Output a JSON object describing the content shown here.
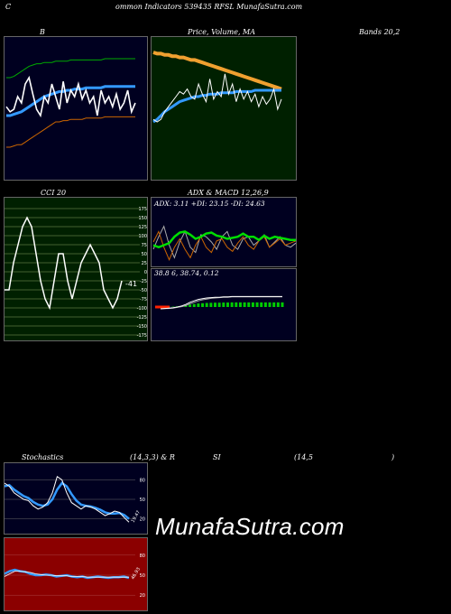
{
  "header": {
    "title_c": "C",
    "title_rest": "ommon  Indicators 539435 RFSL  MunafaSutra.com"
  },
  "labels": {
    "bb": "B",
    "price_ma": "Price,  Volume,  MA",
    "bands": "Bands 20,2",
    "cci": "CCI 20",
    "adx_macd": "ADX  &  MACD 12,26,9",
    "stoch": "Stochastics",
    "stoch_params": "(14,3,3) & R",
    "rsi": "SI",
    "rsi_params": "(14,5",
    "rsi_close": ")"
  },
  "watermark": "MunafaSutra.com",
  "colors": {
    "bb_bg": "#000020",
    "price_bg": "#002000",
    "cci_bg": "#002000",
    "macd_bg": "#000020",
    "stoch_bg": "#000020",
    "rsi_bg": "#8b0000"
  },
  "chart_data": [
    {
      "type": "line",
      "title": "Bollinger Bands 20,2",
      "series": [
        {
          "values": [
            52,
            48,
            50,
            60,
            55,
            70,
            75,
            62,
            50,
            45,
            60,
            55,
            70,
            60,
            50,
            72,
            55,
            65,
            60,
            70,
            58,
            65,
            55,
            60,
            45,
            65,
            55,
            60,
            52,
            62,
            50,
            55,
            65,
            48,
            55
          ]
        },
        {
          "values": [
            45,
            45,
            46,
            47,
            48,
            50,
            52,
            54,
            56,
            58,
            60,
            61,
            62,
            63,
            64,
            64,
            65,
            65,
            66,
            66,
            66,
            67,
            67,
            67,
            67,
            67,
            68,
            68,
            68,
            68,
            68,
            68,
            68,
            68,
            68
          ]
        },
        {
          "values": [
            75,
            75,
            76,
            78,
            80,
            82,
            84,
            85,
            86,
            86,
            87,
            87,
            87,
            88,
            88,
            88,
            88,
            89,
            89,
            89,
            89,
            89,
            89,
            89,
            89,
            89,
            90,
            90,
            90,
            90,
            90,
            90,
            90,
            90,
            90
          ]
        },
        {
          "values": [
            20,
            20,
            21,
            22,
            22,
            24,
            26,
            28,
            30,
            32,
            34,
            36,
            38,
            40,
            40,
            41,
            41,
            42,
            42,
            42,
            42,
            43,
            43,
            43,
            43,
            43,
            44,
            44,
            44,
            44,
            44,
            44,
            44,
            44,
            44
          ]
        }
      ]
    },
    {
      "type": "line",
      "title": "Price, Volume, MA",
      "series": [
        {
          "values": [
            42,
            40,
            42,
            48,
            52,
            56,
            60,
            64,
            62,
            66,
            60,
            58,
            70,
            62,
            56,
            74,
            58,
            64,
            60,
            78,
            62,
            70,
            56,
            66,
            58,
            64,
            56,
            62,
            52,
            60,
            54,
            58,
            66,
            50,
            58
          ]
        },
        {
          "values": [
            40,
            42,
            45,
            48,
            50,
            52,
            54,
            56,
            57,
            58,
            59,
            60,
            60,
            61,
            61,
            62,
            62,
            62,
            63,
            63,
            63,
            63,
            64,
            64,
            64,
            64,
            64,
            65,
            65,
            65,
            65,
            65,
            65,
            65,
            65
          ]
        },
        {
          "values": [
            95,
            94,
            94,
            93,
            93,
            92,
            92,
            91,
            91,
            90,
            89,
            89,
            88,
            87,
            86,
            85,
            84,
            83,
            82,
            81,
            80,
            79,
            78,
            77,
            76,
            75,
            74,
            73,
            72,
            71,
            70,
            69,
            68,
            67,
            66
          ]
        }
      ]
    },
    {
      "type": "line",
      "title": "CCI 20",
      "ylim": [
        -175,
        175
      ],
      "yticks": [
        175,
        150,
        125,
        100,
        75,
        50,
        25,
        0,
        -25,
        -50,
        -75,
        -100,
        -125,
        -150,
        -175
      ],
      "values": [
        -50,
        -50,
        25,
        75,
        125,
        150,
        125,
        50,
        -25,
        -75,
        -100,
        -25,
        50,
        50,
        -25,
        -75,
        -25,
        25,
        50,
        75,
        50,
        25,
        -50,
        -75,
        -100,
        -75,
        -25
      ],
      "annotation": "-41"
    },
    {
      "type": "line",
      "title": "ADX & MACD 12,26,9",
      "annotation": "ADX: 3.11  +DI: 23.15  -DI: 24.63",
      "macd_annotation": "38.8                   6,  38.74,  0.12",
      "series": [
        {
          "values": [
            22,
            20,
            22,
            24,
            30,
            34,
            35,
            32,
            28,
            30,
            33,
            34,
            31,
            30,
            28,
            29,
            30,
            33,
            30,
            30,
            27,
            31,
            28,
            30,
            29,
            28,
            27,
            27
          ]
        },
        {
          "values": [
            18,
            30,
            40,
            22,
            10,
            25,
            35,
            20,
            15,
            32,
            30,
            25,
            18,
            30,
            35,
            22,
            18,
            28,
            30,
            22,
            26,
            32,
            20,
            25,
            30,
            22,
            20,
            24
          ]
        },
        {
          "values": [
            25,
            35,
            20,
            8,
            20,
            28,
            18,
            10,
            22,
            30,
            20,
            15,
            26,
            28,
            20,
            16,
            24,
            30,
            22,
            18,
            26,
            30,
            20,
            24,
            28,
            22,
            24,
            26
          ]
        }
      ],
      "macd": [
        {
          "values": [
            0,
            1,
            2,
            3,
            5,
            8,
            12,
            18,
            22,
            26,
            28,
            30,
            31,
            32,
            32,
            33,
            33,
            34,
            34,
            34,
            34,
            34,
            34,
            34,
            34,
            34,
            34,
            34,
            34,
            34
          ]
        },
        {
          "values": [
            0,
            0.5,
            1,
            2,
            4,
            6,
            9,
            14,
            18,
            22,
            25,
            27,
            29,
            30,
            31,
            32,
            32,
            33,
            33,
            33,
            33,
            33,
            33,
            33,
            33,
            33,
            33,
            33,
            33,
            33
          ]
        }
      ]
    },
    {
      "type": "line",
      "title": "Stochastics (14,3,3)",
      "ylim": [
        0,
        100
      ],
      "yticks": [
        80,
        50,
        20
      ],
      "series": [
        {
          "values": [
            75,
            70,
            60,
            55,
            50,
            48,
            40,
            35,
            38,
            45,
            60,
            85,
            80,
            60,
            45,
            40,
            35,
            40,
            38,
            35,
            30,
            25,
            28,
            32,
            30,
            22,
            15
          ]
        },
        {
          "values": [
            70,
            72,
            65,
            60,
            55,
            52,
            46,
            42,
            40,
            42,
            50,
            65,
            75,
            70,
            58,
            48,
            42,
            40,
            39,
            37,
            34,
            30,
            28,
            28,
            29,
            26,
            20
          ]
        }
      ],
      "annotation": "19.47"
    },
    {
      "type": "line",
      "title": "RSI (14,5)",
      "ylim": [
        0,
        100
      ],
      "yticks": [
        80,
        50,
        20
      ],
      "series": [
        {
          "values": [
            52,
            56,
            58,
            56,
            55,
            52,
            50,
            50,
            51,
            50,
            48,
            49,
            50,
            48,
            47,
            48,
            46,
            47,
            48,
            47,
            46,
            47,
            47,
            48,
            46
          ]
        },
        {
          "values": [
            48,
            52,
            56,
            56,
            55,
            54,
            52,
            51,
            50,
            50,
            49,
            49,
            49,
            48,
            48,
            48,
            47,
            47,
            47,
            47,
            47,
            47,
            47,
            47,
            47
          ]
        }
      ],
      "annotation": "46.93"
    }
  ]
}
